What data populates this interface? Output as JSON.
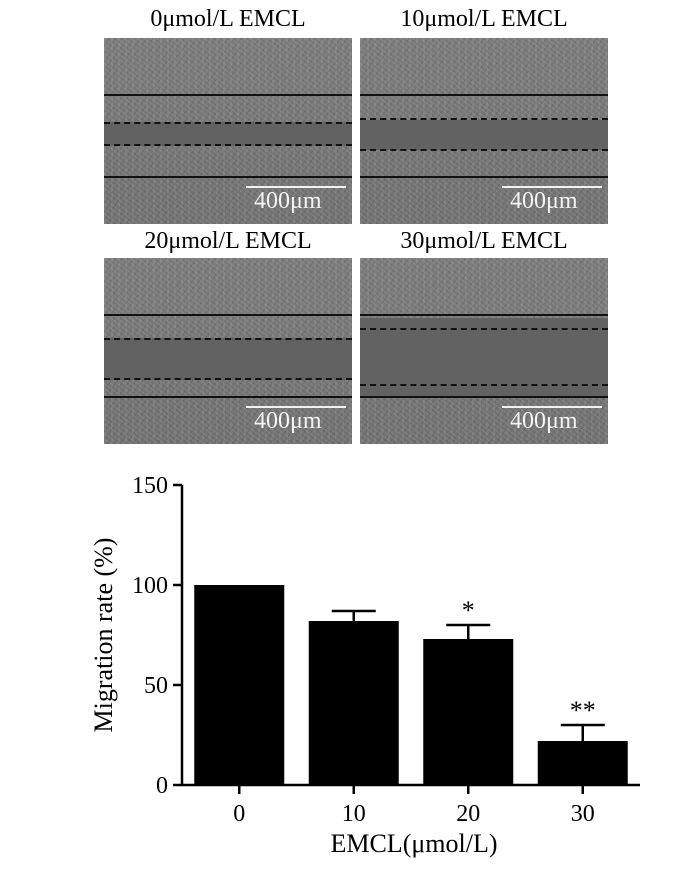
{
  "panels": [
    {
      "title": "0μmol/L EMCL",
      "scale": "400μm"
    },
    {
      "title": "10μmol/L EMCL",
      "scale": "400μm"
    },
    {
      "title": "20μmol/L EMCL",
      "scale": "400μm"
    },
    {
      "title": "30μmol/L EMCL",
      "scale": "400μm"
    }
  ],
  "chart_data": {
    "type": "bar",
    "categories": [
      "0",
      "10",
      "20",
      "30"
    ],
    "values": [
      100,
      82,
      73,
      22
    ],
    "errors": [
      0,
      5,
      7,
      8
    ],
    "significance": [
      "",
      "",
      "*",
      "**"
    ],
    "xlabel": "EMCL(μmol/L)",
    "ylabel": "Migration rate (%)",
    "ylim": [
      0,
      150
    ],
    "yticks": [
      "0",
      "50",
      "100",
      "150"
    ],
    "bar_color": "#000000"
  }
}
